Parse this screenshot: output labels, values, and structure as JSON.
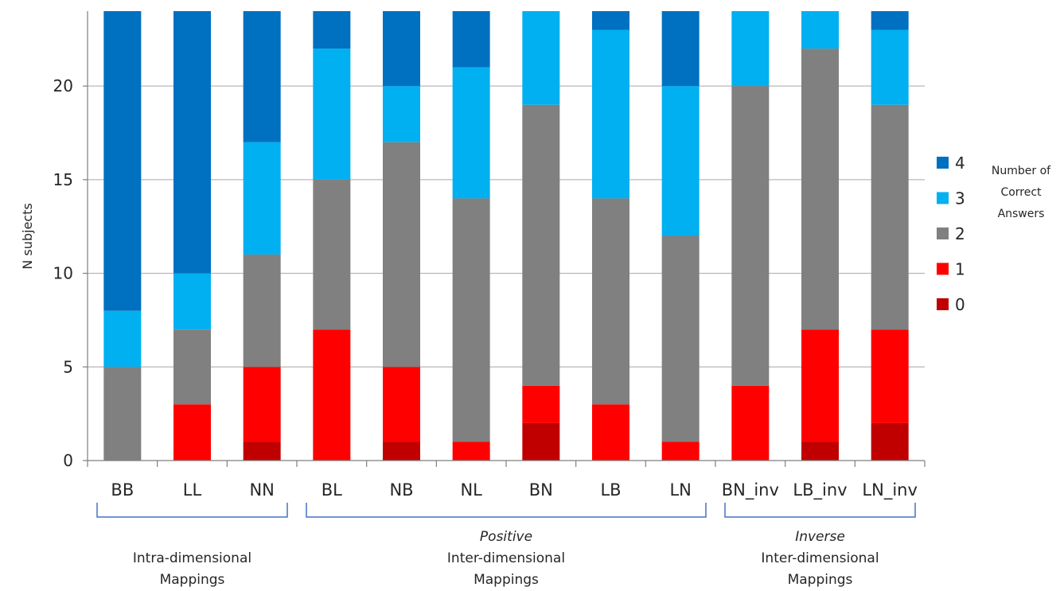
{
  "chart_data": {
    "type": "bar",
    "stacked": true,
    "title": "",
    "xlabel": "",
    "ylabel": "N subjects",
    "ylim": [
      0,
      24
    ],
    "yticks": [
      0,
      5,
      10,
      15,
      20
    ],
    "grid": true,
    "legend_position": "right",
    "legend_title_lines": [
      "Number of",
      "Correct",
      "Answers"
    ],
    "categories": [
      "BB",
      "LL",
      "NN",
      "BL",
      "NB",
      "NL",
      "BN",
      "LB",
      "LN",
      "BN_inv",
      "LB_inv",
      "LN_inv"
    ],
    "series": [
      {
        "name": "0",
        "color": "#C00000",
        "values": [
          0,
          0,
          1,
          0,
          1,
          0,
          2,
          0,
          0,
          0,
          1,
          2
        ]
      },
      {
        "name": "1",
        "color": "#FF0000",
        "values": [
          0,
          3,
          4,
          7,
          4,
          1,
          2,
          3,
          1,
          4,
          6,
          5
        ]
      },
      {
        "name": "2",
        "color": "#808080",
        "values": [
          5,
          4,
          6,
          8,
          12,
          13,
          15,
          11,
          11,
          16,
          15,
          12
        ]
      },
      {
        "name": "3",
        "color": "#00B0F0",
        "values": [
          3,
          3,
          6,
          7,
          3,
          7,
          5,
          9,
          8,
          4,
          2,
          4
        ]
      },
      {
        "name": "4",
        "color": "#0070C0",
        "values": [
          16,
          14,
          7,
          2,
          4,
          3,
          0,
          1,
          4,
          0,
          0,
          1
        ]
      }
    ],
    "groups": [
      {
        "lines": [
          "",
          "Intra-dimensional",
          "Mappings"
        ],
        "italic_first": false,
        "from": 0,
        "to": 2
      },
      {
        "lines": [
          "Positive",
          "Inter-dimensional",
          "Mappings"
        ],
        "italic_first": true,
        "from": 3,
        "to": 8
      },
      {
        "lines": [
          "Inverse",
          "Inter-dimensional",
          "Mappings"
        ],
        "italic_first": true,
        "from": 9,
        "to": 11
      }
    ]
  },
  "colors": {
    "bracket": "#4472C4",
    "grid": "#A6A6A6",
    "axis": "#7F7F7F"
  }
}
